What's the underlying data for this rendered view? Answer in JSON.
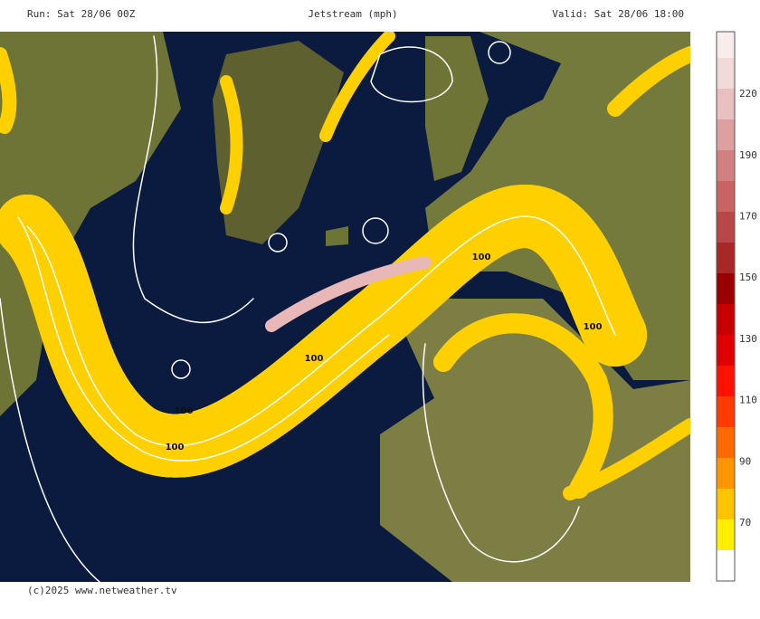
{
  "header": {
    "run": "Run: Sat 28/06 00Z",
    "title": "Jetstream (mph)",
    "valid": "Valid: Sat 28/06 18:00"
  },
  "legend": {
    "labels": [
      "70",
      "90",
      "110",
      "130",
      "150",
      "170",
      "190",
      "220"
    ],
    "colors": [
      "#ffffff",
      "#ffee00",
      "#ffc400",
      "#ff9500",
      "#ff6a00",
      "#ff3c00",
      "#ff1200",
      "#e00000",
      "#c80000",
      "#9a0000",
      "#a82828",
      "#b84848",
      "#c86464",
      "#d08080",
      "#dca0a0",
      "#e8c0c0",
      "#f2dada",
      "#f8ecec"
    ]
  },
  "map": {
    "contour_labels": [
      "100",
      "100",
      "100",
      "100",
      "100"
    ]
  },
  "footer": "(c)2025 www.netweather.tv"
}
